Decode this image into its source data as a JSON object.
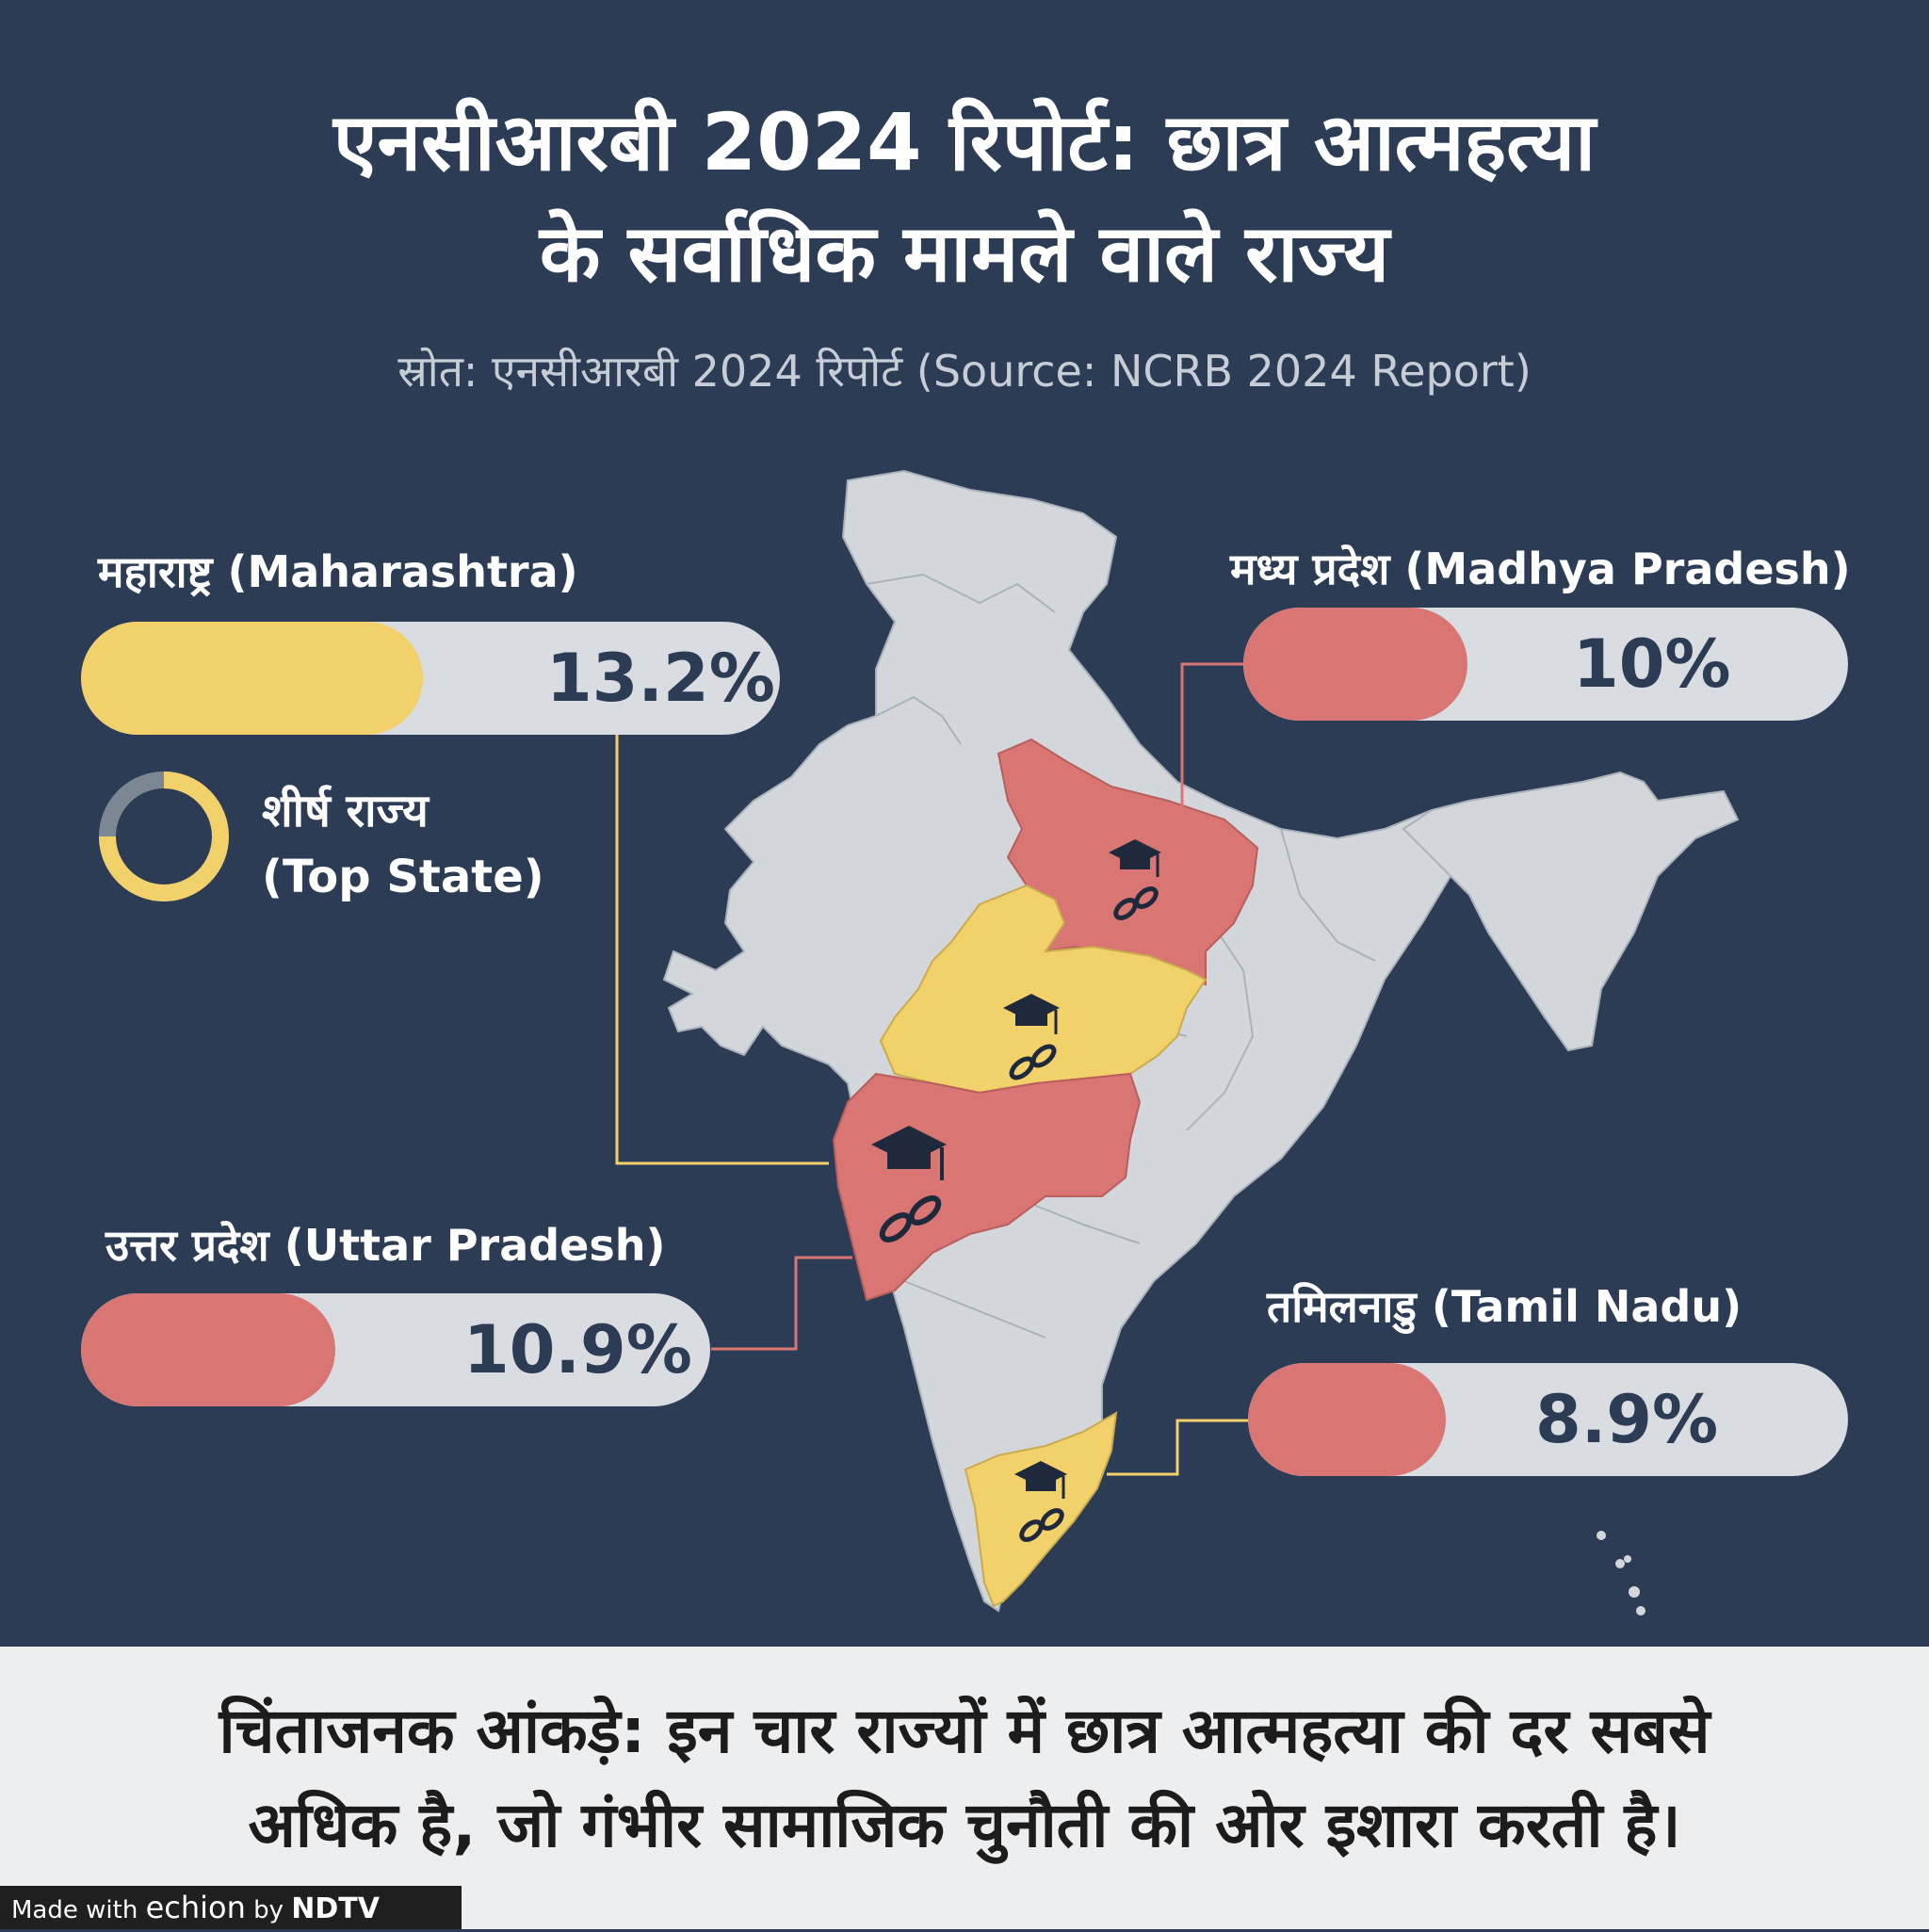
{
  "title_line1": "एनसीआरबी 2024 रिपोर्ट: छात्र आत्महत्या",
  "title_line2": "के सर्वाधिक मामले वाले राज्य",
  "subtitle": "स्रोत: एनसीआरबी 2024 रिपोर्ट (Source: NCRB 2024 Report)",
  "states": [
    {
      "label": "महाराष्ट्र (Maharashtra)",
      "value_text": "13.2%",
      "value": 13.2,
      "color": "#f2d16b"
    },
    {
      "label": "मध्य प्रदेश (Madhya Pradesh)",
      "value_text": "10%",
      "value": 10,
      "color": "#d97674"
    },
    {
      "label": "उत्तर प्रदेश (Uttar Pradesh)",
      "value_text": "10.9%",
      "value": 10.9,
      "color": "#d97674"
    },
    {
      "label": "तमिलनाडु (Tamil Nadu)",
      "value_text": "8.9%",
      "value": 8.9,
      "color": "#d97674"
    }
  ],
  "top_state": {
    "line1": "शीर्ष राज्य",
    "line2": "(Top State)"
  },
  "footer": {
    "line1": "चिंताजनक आंकड़े: इन चार राज्यों में छात्र आत्महत्या की दर सबसे",
    "line2": "अधिक है, जो गंभीर सामाजिक चुनौती की ओर इशारा करती है।"
  },
  "credit": {
    "made_with": "Made with",
    "brand": "echion",
    "by": "by",
    "publisher": "NDTV"
  },
  "colors": {
    "background": "#2d3c55",
    "map_fill": "#d3d7dc",
    "highlight_yellow": "#f2d16b",
    "highlight_red": "#d97674",
    "pill_track": "#d9dde2"
  },
  "icons": [
    "graduation-cap-icon",
    "broken-chain-icon"
  ]
}
